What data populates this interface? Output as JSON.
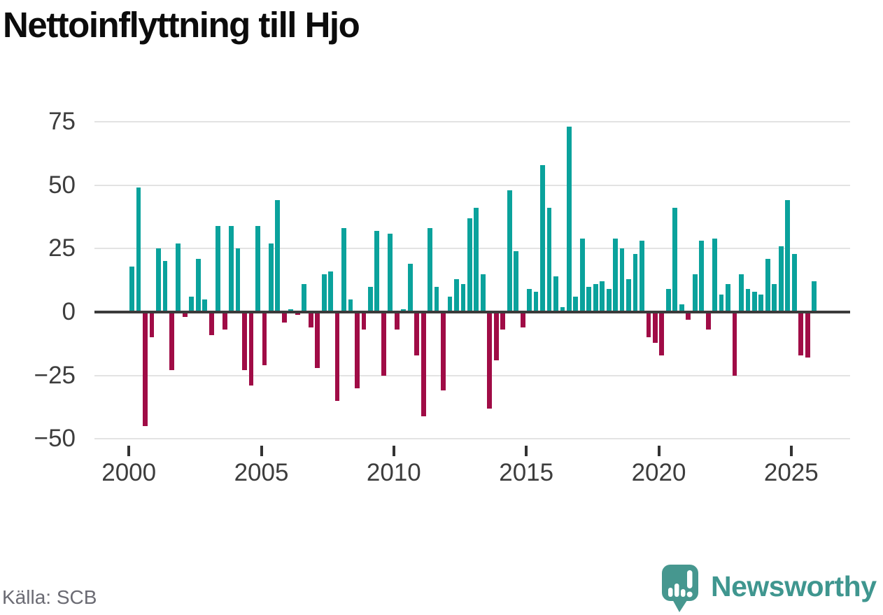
{
  "title": "Nettoinflyttning till Hjo",
  "source": "Källa: SCB",
  "branding": {
    "name": "Newsworthy",
    "logo_icon": "speech-bubble-bar-chart-exclamation",
    "color": "#3f968f"
  },
  "colors": {
    "positive_bar": "#0aa29c",
    "negative_bar": "#a00c46",
    "gridline": "#e3e3e3",
    "zero_axis": "#3b3b3b",
    "axis_text": "#3d3d3d",
    "title_text": "#0c0c0c",
    "source_text": "#6b6b73"
  },
  "chart_data": {
    "type": "bar",
    "title": "Nettoinflyttning till Hjo",
    "frequency": "quarterly",
    "x": [
      "2000 Q1",
      "2000 Q2",
      "2000 Q3",
      "2000 Q4",
      "2001 Q1",
      "2001 Q2",
      "2001 Q3",
      "2001 Q4",
      "2002 Q1",
      "2002 Q2",
      "2002 Q3",
      "2002 Q4",
      "2003 Q1",
      "2003 Q2",
      "2003 Q3",
      "2003 Q4",
      "2004 Q1",
      "2004 Q2",
      "2004 Q3",
      "2004 Q4",
      "2005 Q1",
      "2005 Q2",
      "2005 Q3",
      "2005 Q4",
      "2006 Q1",
      "2006 Q2",
      "2006 Q3",
      "2006 Q4",
      "2007 Q1",
      "2007 Q2",
      "2007 Q3",
      "2007 Q4",
      "2008 Q1",
      "2008 Q2",
      "2008 Q3",
      "2008 Q4",
      "2009 Q1",
      "2009 Q2",
      "2009 Q3",
      "2009 Q4",
      "2010 Q1",
      "2010 Q2",
      "2010 Q3",
      "2010 Q4",
      "2011 Q1",
      "2011 Q2",
      "2011 Q3",
      "2011 Q4",
      "2012 Q1",
      "2012 Q2",
      "2012 Q3",
      "2012 Q4",
      "2013 Q1",
      "2013 Q2",
      "2013 Q3",
      "2013 Q4",
      "2014 Q1",
      "2014 Q2",
      "2014 Q3",
      "2014 Q4",
      "2015 Q1",
      "2015 Q2",
      "2015 Q3",
      "2015 Q4",
      "2016 Q1",
      "2016 Q2",
      "2016 Q3",
      "2016 Q4",
      "2017 Q1",
      "2017 Q2",
      "2017 Q3",
      "2017 Q4",
      "2018 Q1",
      "2018 Q2",
      "2018 Q3",
      "2018 Q4",
      "2019 Q1",
      "2019 Q2",
      "2019 Q3",
      "2019 Q4",
      "2020 Q1",
      "2020 Q2",
      "2020 Q3",
      "2020 Q4",
      "2021 Q1",
      "2021 Q2",
      "2021 Q3",
      "2021 Q4",
      "2022 Q1",
      "2022 Q2",
      "2022 Q3",
      "2022 Q4",
      "2023 Q1",
      "2023 Q2",
      "2023 Q3",
      "2023 Q4",
      "2024 Q1",
      "2024 Q2",
      "2024 Q3",
      "2024 Q4",
      "2025 Q1",
      "2025 Q2",
      "2025 Q3",
      "2025 Q4"
    ],
    "values": [
      18,
      49,
      -45,
      -10,
      25,
      20,
      -23,
      27,
      -2,
      6,
      21,
      5,
      -9,
      34,
      -7,
      34,
      25,
      -23,
      -29,
      34,
      -21,
      27,
      44,
      -4,
      1,
      -1,
      11,
      -6,
      -22,
      15,
      16,
      -35,
      33,
      5,
      -30,
      -7,
      10,
      32,
      -25,
      31,
      -7,
      1,
      19,
      -17,
      -41,
      33,
      10,
      -31,
      6,
      13,
      11,
      37,
      41,
      15,
      -38,
      -19,
      -7,
      48,
      24,
      -6,
      9,
      8,
      58,
      41,
      14,
      2,
      73,
      6,
      29,
      10,
      11,
      12,
      9,
      29,
      25,
      13,
      23,
      28,
      -10,
      -12,
      -17,
      9,
      41,
      3,
      -3,
      15,
      28,
      -7,
      29,
      7,
      11,
      -25,
      15,
      9,
      8,
      7,
      21,
      11,
      26,
      44,
      23,
      -17,
      -18,
      12
    ],
    "xlabel": "",
    "ylabel": "",
    "yticks": [
      75,
      50,
      25,
      0,
      -25,
      -50
    ],
    "ytick_labels": [
      "75",
      "50",
      "25",
      "0",
      "−25",
      "−50"
    ],
    "xtick_years": [
      2000,
      2005,
      2010,
      2015,
      2020,
      2025
    ],
    "xtick_labels": [
      "2000",
      "2005",
      "2010",
      "2015",
      "2020",
      "2025"
    ],
    "ylim": [
      -50,
      75
    ],
    "grid": "horizontal",
    "legend": "none",
    "positive_color": "#0aa29c",
    "negative_color": "#a00c46"
  }
}
